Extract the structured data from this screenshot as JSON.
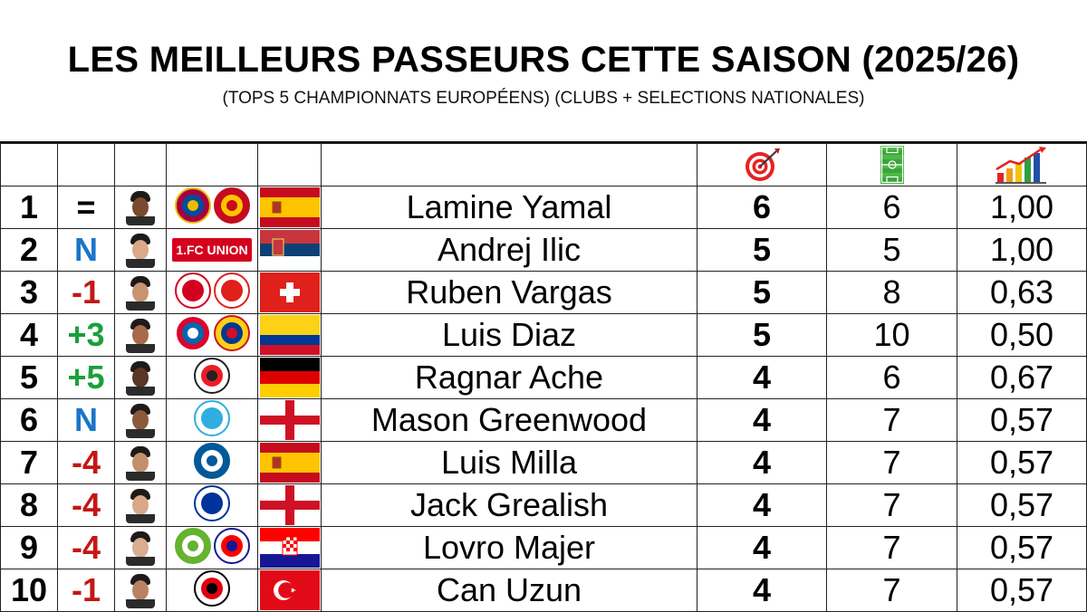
{
  "title": "LES MEILLEURS PASSEURS CETTE SAISON (2025/26)",
  "subtitle": "(TOPS 5 CHAMPIONNATS EUROPÉENS) (CLUBS + SELECTIONS NATIONALES)",
  "columns": {
    "assists_icon": "target-icon",
    "matches_icon": "football-pitch-icon",
    "ratio_icon": "bar-chart-growth-icon"
  },
  "colors": {
    "new": "#1a76c8",
    "up": "#1aa03a",
    "down": "#c41616",
    "same": "#000000"
  },
  "rows": [
    {
      "rank": "1",
      "move": "=",
      "move_type": "same",
      "name": "Lamine Yamal",
      "assists": "6",
      "matches": "6",
      "ratio": "1,00",
      "club": "FC Barcelona",
      "club2": "Spain",
      "flag": "spain",
      "skin": "#7a4a2f"
    },
    {
      "rank": "2",
      "move": "N",
      "move_type": "new",
      "name": "Andrej Ilic",
      "assists": "5",
      "matches": "5",
      "ratio": "1,00",
      "club": "Union Berlin",
      "club2": "",
      "flag": "serbia",
      "skin": "#d9a98a"
    },
    {
      "rank": "3",
      "move": "-1",
      "move_type": "down",
      "name": "Ruben Vargas",
      "assists": "5",
      "matches": "8",
      "ratio": "0,63",
      "club": "Sevilla FC",
      "club2": "Switzerland",
      "flag": "switzerland",
      "skin": "#c99372"
    },
    {
      "rank": "4",
      "move": "+3",
      "move_type": "up",
      "name": "Luis Diaz",
      "assists": "5",
      "matches": "10",
      "ratio": "0,50",
      "club": "FC Bayern München",
      "club2": "Colombia",
      "flag": "colombia",
      "skin": "#a86a4a"
    },
    {
      "rank": "5",
      "move": "+5",
      "move_type": "up",
      "name": "Ragnar Ache",
      "assists": "4",
      "matches": "6",
      "ratio": "0,67",
      "club": "1. FC Köln",
      "club2": "",
      "flag": "germany",
      "skin": "#5a3624"
    },
    {
      "rank": "6",
      "move": "N",
      "move_type": "new",
      "name": "Mason Greenwood",
      "assists": "4",
      "matches": "7",
      "ratio": "0,57",
      "club": "Olympique de Marseille",
      "club2": "",
      "flag": "england",
      "skin": "#8a5a3c"
    },
    {
      "rank": "7",
      "move": "-4",
      "move_type": "down",
      "name": "Luis Milla",
      "assists": "4",
      "matches": "7",
      "ratio": "0,57",
      "club": "Getafe CF",
      "club2": "",
      "flag": "spain",
      "skin": "#c48f6c"
    },
    {
      "rank": "8",
      "move": "-4",
      "move_type": "down",
      "name": "Jack Grealish",
      "assists": "4",
      "matches": "7",
      "ratio": "0,57",
      "club": "Everton",
      "club2": "",
      "flag": "england",
      "skin": "#d8a888"
    },
    {
      "rank": "9",
      "move": "-4",
      "move_type": "down",
      "name": "Lovro Majer",
      "assists": "4",
      "matches": "7",
      "ratio": "0,57",
      "club": "VfL Wolfsburg",
      "club2": "Croatia",
      "flag": "croatia",
      "skin": "#d9ad90"
    },
    {
      "rank": "10",
      "move": "-1",
      "move_type": "down",
      "name": "Can Uzun",
      "assists": "4",
      "matches": "7",
      "ratio": "0,57",
      "club": "Eintracht Frankfurt",
      "club2": "",
      "flag": "turkey",
      "skin": "#b98262"
    }
  ],
  "club_labels": {
    "union": "1.FC UNION"
  }
}
